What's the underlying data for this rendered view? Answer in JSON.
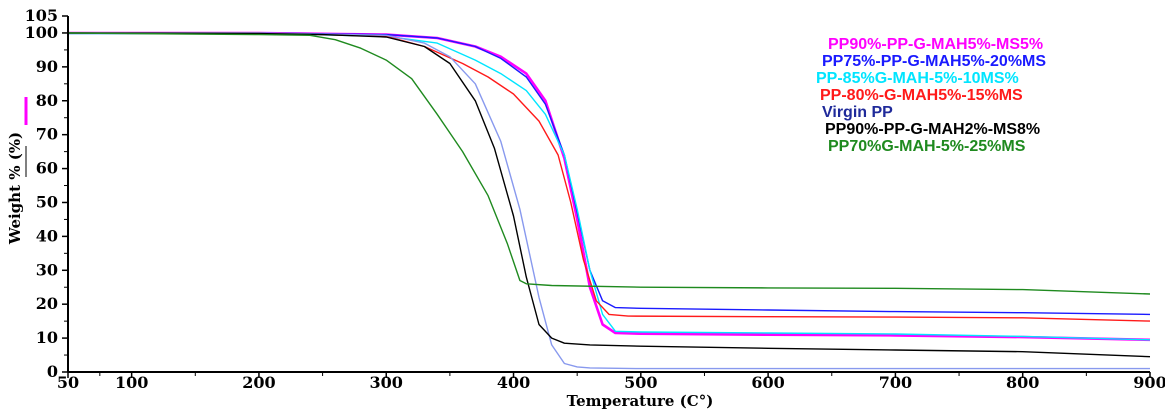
{
  "chart_data": {
    "type": "line",
    "title": "",
    "xlabel": "Temperature (C°)",
    "ylabel": "Weight % (%)",
    "xlim": [
      50,
      900
    ],
    "ylim": [
      0,
      105
    ],
    "xticks": [
      50,
      100,
      200,
      300,
      400,
      500,
      600,
      700,
      800,
      900
    ],
    "yticks": [
      0,
      10,
      20,
      30,
      40,
      50,
      60,
      70,
      80,
      90,
      100,
      105
    ],
    "grid": false,
    "legend_position": "top-right",
    "series": [
      {
        "name": "PP90%-PP-G-MAH5%-MS5%",
        "color": "#ff00ff",
        "x": [
          50,
          200,
          300,
          340,
          370,
          390,
          410,
          425,
          440,
          450,
          460,
          470,
          480,
          500,
          600,
          700,
          800,
          900
        ],
        "y": [
          100,
          100,
          99.5,
          98.5,
          96,
          93,
          88,
          80,
          63,
          45,
          25,
          14,
          11.5,
          11.3,
          11,
          10.8,
          10.3,
          9.5
        ]
      },
      {
        "name": "PP75%-PP-G-MAH5%-20%MS",
        "color": "#1a1aff",
        "x": [
          50,
          200,
          300,
          340,
          370,
          390,
          410,
          425,
          440,
          450,
          460,
          470,
          480,
          500,
          600,
          700,
          800,
          900
        ],
        "y": [
          100,
          100,
          99.5,
          98.5,
          96,
          92.5,
          87,
          79,
          64,
          47,
          30,
          21,
          19,
          18.8,
          18.3,
          17.8,
          17.5,
          17
        ]
      },
      {
        "name": "PP-85%G-MAH-5%-10MS%",
        "color": "#00e5ff",
        "x": [
          50,
          200,
          300,
          340,
          370,
          390,
          410,
          425,
          440,
          450,
          460,
          470,
          480,
          500,
          600,
          700,
          800,
          900
        ],
        "y": [
          99.8,
          99.8,
          99,
          97,
          92,
          88,
          83,
          76,
          64,
          48,
          30,
          17,
          12,
          11.8,
          11.5,
          11.2,
          10.5,
          9.5
        ]
      },
      {
        "name": "PP-80%-G-MAH5%-15%MS",
        "color": "#ff1a1a",
        "x": [
          50,
          200,
          300,
          330,
          360,
          380,
          400,
          420,
          435,
          445,
          455,
          465,
          475,
          490,
          600,
          700,
          800,
          900
        ],
        "y": [
          100,
          100,
          99,
          96,
          91,
          87,
          82,
          74,
          64,
          50,
          33,
          21,
          17,
          16.5,
          16.3,
          16.2,
          16,
          15
        ]
      },
      {
        "name": "Virgin PP",
        "color": "#8899ee",
        "x": [
          50,
          200,
          300,
          330,
          350,
          370,
          390,
          405,
          420,
          430,
          440,
          450,
          460,
          500,
          600,
          700,
          800,
          900
        ],
        "y": [
          100,
          100,
          99.3,
          97,
          93,
          85,
          68,
          48,
          22,
          8,
          2.5,
          1.5,
          1.2,
          1,
          1,
          1,
          1,
          1
        ]
      },
      {
        "name": "PP90%-PP-G-MAH2%-MS8%",
        "color": "#000000",
        "x": [
          50,
          200,
          250,
          300,
          330,
          350,
          370,
          385,
          400,
          410,
          420,
          430,
          440,
          460,
          500,
          600,
          700,
          800,
          900
        ],
        "y": [
          100,
          99.8,
          99.5,
          98.8,
          96,
          91,
          80,
          66,
          46,
          28,
          14,
          10,
          8.5,
          8,
          7.6,
          7,
          6.5,
          6,
          4.5
        ]
      },
      {
        "name": "PP70%G-MAH-5%-25%MS",
        "color": "#1f8a1f",
        "x": [
          50,
          200,
          240,
          260,
          280,
          300,
          320,
          340,
          360,
          380,
          395,
          405,
          410,
          430,
          500,
          600,
          700,
          800,
          900
        ],
        "y": [
          100,
          99.5,
          99.3,
          98,
          95.5,
          92,
          86.5,
          76,
          65,
          52,
          38,
          27,
          26,
          25.5,
          25,
          24.8,
          24.7,
          24.3,
          23
        ]
      }
    ]
  }
}
